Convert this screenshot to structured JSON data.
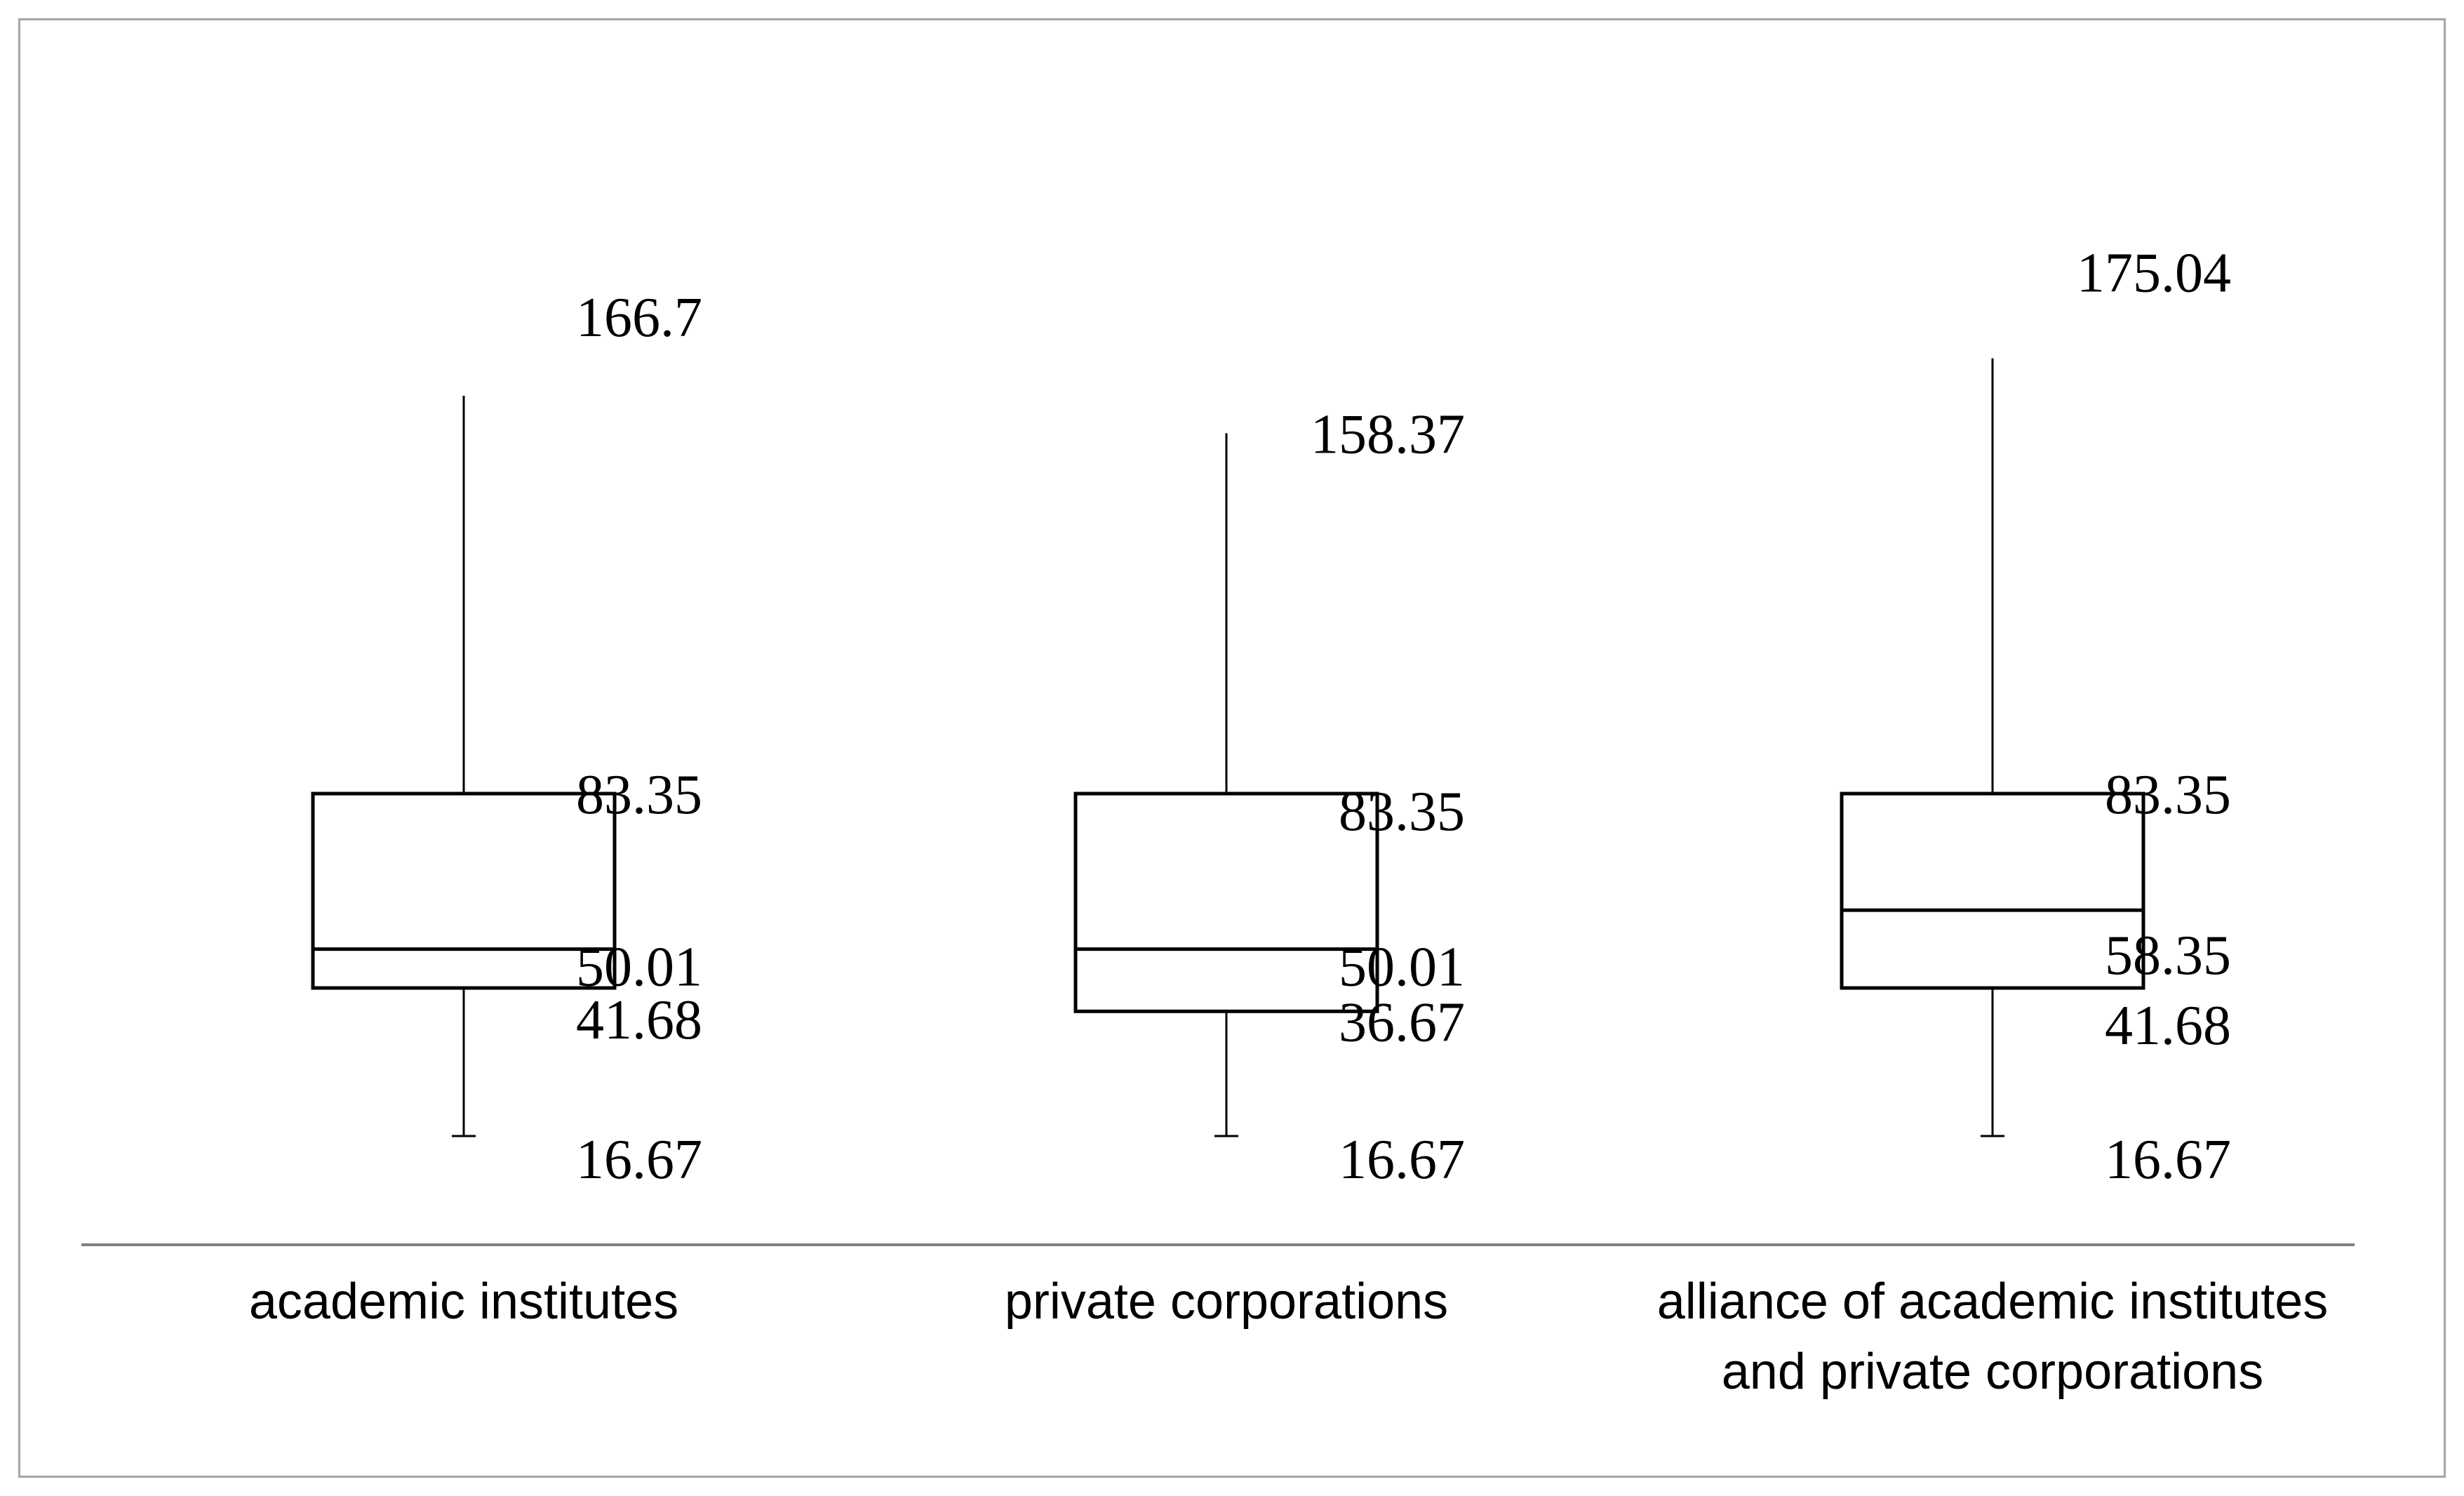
{
  "chart_data": {
    "type": "box",
    "categories": [
      [
        "academic institutes"
      ],
      [
        "private corporations"
      ],
      [
        "alliance of academic institutes",
        "and private corporations"
      ]
    ],
    "boxes": [
      {
        "category": "academic institutes",
        "whisker_low": 16.67,
        "q1": 41.68,
        "median": 50.01,
        "q3": 83.35,
        "whisker_high": 166.7,
        "labels": {
          "whisker_high": "166.7",
          "q3": "83.35",
          "median": "50.01",
          "q1": "41.68",
          "whisker_low": "16.67"
        }
      },
      {
        "category": "private corporations",
        "whisker_low": 16.67,
        "q1": 36.67,
        "median": 50.01,
        "q3": 83.35,
        "whisker_high": 158.37,
        "labels": {
          "whisker_high": "158.37",
          "q3": "83.35",
          "median": "50.01",
          "q1": "36.67",
          "whisker_low": "16.67"
        }
      },
      {
        "category": "alliance of academic institutes and private corporations",
        "whisker_low": 16.67,
        "q1": 41.68,
        "median": 58.35,
        "q3": 83.35,
        "whisker_high": 175.04,
        "labels": {
          "whisker_high": "175.04",
          "q3": "83.35",
          "median": "58.35",
          "q1": "41.68",
          "whisker_low": "16.67"
        }
      }
    ],
    "title": "",
    "xlabel": "",
    "ylabel": "",
    "y_axis_shown": false,
    "grid": false,
    "legend": false
  },
  "colors": {
    "frame": "#a6a6a6",
    "axis": "#808080",
    "box": "#000000",
    "text": "#000000"
  }
}
